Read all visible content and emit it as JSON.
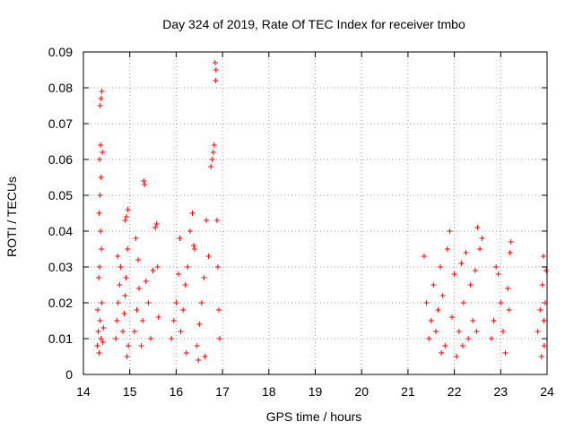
{
  "chart_data": {
    "type": "scatter",
    "title": "Day 324 of 2019, Rate Of TEC Index for receiver tmbo",
    "xlabel": "GPS time / hours",
    "ylabel": "ROTI / TECUs",
    "xlim": [
      14,
      24
    ],
    "ylim": [
      0,
      0.09
    ],
    "x_ticks": [
      14,
      15,
      16,
      17,
      18,
      19,
      20,
      21,
      22,
      23,
      24
    ],
    "x_tick_labels": [
      "14",
      "15",
      "16",
      "17",
      "18",
      "19",
      "20",
      "21",
      "22",
      "23",
      "24"
    ],
    "y_ticks": [
      0,
      0.01,
      0.02,
      0.03,
      0.04,
      0.05,
      0.06,
      0.07,
      0.08,
      0.09
    ],
    "y_tick_labels": [
      "0",
      "0.01",
      "0.02",
      "0.03",
      "0.04",
      "0.05",
      "0.06",
      "0.07",
      "0.08",
      "0.09"
    ],
    "grid": true,
    "marker": "+",
    "marker_color": "#ff0000",
    "series": [
      {
        "name": "ROTI",
        "points": [
          [
            14.3,
            0.008
          ],
          [
            14.32,
            0.012
          ],
          [
            14.34,
            0.006
          ],
          [
            14.36,
            0.015
          ],
          [
            14.38,
            0.01
          ],
          [
            14.4,
            0.02
          ],
          [
            14.42,
            0.009
          ],
          [
            14.33,
            0.027
          ],
          [
            14.35,
            0.03
          ],
          [
            14.37,
            0.04
          ],
          [
            14.34,
            0.045
          ],
          [
            14.36,
            0.05
          ],
          [
            14.38,
            0.055
          ],
          [
            14.35,
            0.06
          ],
          [
            14.37,
            0.064
          ],
          [
            14.36,
            0.075
          ],
          [
            14.38,
            0.077
          ],
          [
            14.4,
            0.079
          ],
          [
            14.41,
            0.062
          ],
          [
            14.39,
            0.035
          ],
          [
            14.31,
            0.018
          ],
          [
            14.43,
            0.013
          ],
          [
            14.7,
            0.01
          ],
          [
            14.72,
            0.015
          ],
          [
            14.75,
            0.02
          ],
          [
            14.78,
            0.025
          ],
          [
            14.8,
            0.03
          ],
          [
            14.74,
            0.033
          ],
          [
            14.85,
            0.012
          ],
          [
            14.88,
            0.017
          ],
          [
            14.9,
            0.022
          ],
          [
            14.92,
            0.027
          ],
          [
            14.94,
            0.005
          ],
          [
            14.9,
            0.043
          ],
          [
            14.93,
            0.044
          ],
          [
            14.96,
            0.046
          ],
          [
            14.97,
            0.008
          ],
          [
            14.95,
            0.035
          ],
          [
            15.1,
            0.012
          ],
          [
            15.15,
            0.018
          ],
          [
            15.2,
            0.024
          ],
          [
            15.25,
            0.008
          ],
          [
            15.28,
            0.015
          ],
          [
            15.3,
            0.054
          ],
          [
            15.32,
            0.053
          ],
          [
            15.35,
            0.026
          ],
          [
            15.4,
            0.02
          ],
          [
            15.45,
            0.01
          ],
          [
            15.5,
            0.029
          ],
          [
            15.55,
            0.041
          ],
          [
            15.58,
            0.042
          ],
          [
            15.6,
            0.03
          ],
          [
            15.62,
            0.016
          ],
          [
            15.13,
            0.038
          ],
          [
            15.18,
            0.032
          ],
          [
            15.9,
            0.01
          ],
          [
            15.95,
            0.015
          ],
          [
            16.0,
            0.02
          ],
          [
            16.05,
            0.028
          ],
          [
            16.1,
            0.012
          ],
          [
            16.15,
            0.018
          ],
          [
            16.2,
            0.025
          ],
          [
            16.25,
            0.03
          ],
          [
            16.3,
            0.04
          ],
          [
            16.35,
            0.045
          ],
          [
            16.4,
            0.035
          ],
          [
            16.45,
            0.008
          ],
          [
            16.5,
            0.014
          ],
          [
            16.55,
            0.02
          ],
          [
            16.6,
            0.027
          ],
          [
            16.65,
            0.043
          ],
          [
            16.7,
            0.033
          ],
          [
            16.75,
            0.058
          ],
          [
            16.78,
            0.06
          ],
          [
            16.8,
            0.062
          ],
          [
            16.82,
            0.064
          ],
          [
            16.84,
            0.087
          ],
          [
            16.86,
            0.085
          ],
          [
            16.85,
            0.082
          ],
          [
            16.88,
            0.043
          ],
          [
            16.9,
            0.03
          ],
          [
            16.92,
            0.018
          ],
          [
            16.94,
            0.01
          ],
          [
            16.22,
            0.006
          ],
          [
            16.48,
            0.004
          ],
          [
            16.62,
            0.005
          ],
          [
            16.08,
            0.038
          ],
          [
            16.38,
            0.036
          ],
          [
            21.35,
            0.033
          ],
          [
            21.4,
            0.02
          ],
          [
            21.45,
            0.01
          ],
          [
            21.5,
            0.015
          ],
          [
            21.55,
            0.025
          ],
          [
            21.6,
            0.012
          ],
          [
            21.65,
            0.018
          ],
          [
            21.7,
            0.03
          ],
          [
            21.75,
            0.022
          ],
          [
            21.8,
            0.008
          ],
          [
            21.85,
            0.035
          ],
          [
            21.9,
            0.04
          ],
          [
            21.95,
            0.016
          ],
          [
            22.0,
            0.028
          ],
          [
            22.05,
            0.005
          ],
          [
            22.1,
            0.012
          ],
          [
            22.15,
            0.031
          ],
          [
            22.2,
            0.02
          ],
          [
            22.25,
            0.034
          ],
          [
            22.3,
            0.01
          ],
          [
            22.35,
            0.025
          ],
          [
            22.4,
            0.015
          ],
          [
            22.45,
            0.029
          ],
          [
            22.5,
            0.041
          ],
          [
            22.55,
            0.035
          ],
          [
            22.6,
            0.038
          ],
          [
            22.48,
            0.012
          ],
          [
            22.18,
            0.008
          ],
          [
            21.72,
            0.006
          ],
          [
            22.8,
            0.01
          ],
          [
            22.85,
            0.015
          ],
          [
            22.9,
            0.03
          ],
          [
            22.95,
            0.028
          ],
          [
            23.0,
            0.02
          ],
          [
            23.05,
            0.012
          ],
          [
            23.1,
            0.006
          ],
          [
            23.15,
            0.024
          ],
          [
            23.2,
            0.034
          ],
          [
            23.22,
            0.037
          ],
          [
            23.18,
            0.018
          ],
          [
            23.8,
            0.012
          ],
          [
            23.85,
            0.018
          ],
          [
            23.9,
            0.025
          ],
          [
            23.92,
            0.033
          ],
          [
            23.94,
            0.008
          ],
          [
            23.96,
            0.02
          ],
          [
            23.98,
            0.029
          ],
          [
            23.88,
            0.005
          ],
          [
            23.93,
            0.015
          ]
        ]
      }
    ]
  }
}
